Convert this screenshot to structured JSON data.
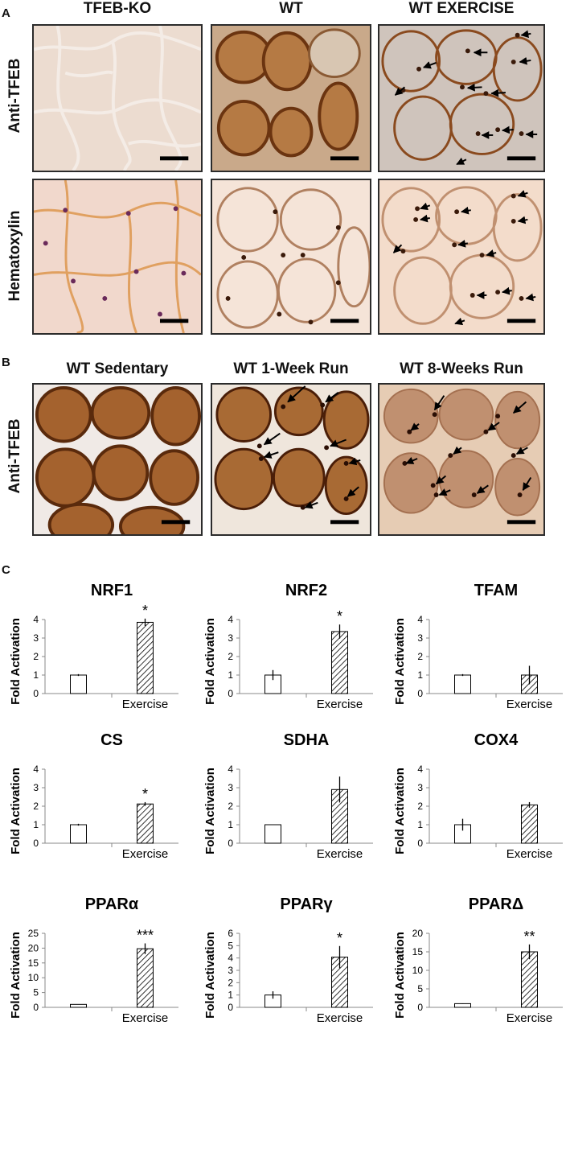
{
  "panelA": {
    "letter": "A",
    "columns": [
      "TFEB-KO",
      "WT",
      "WT EXERCISE"
    ],
    "rows": [
      "Anti-TFEB",
      "Hematoxylin"
    ]
  },
  "panelB": {
    "letter": "B",
    "columns": [
      "WT Sedentary",
      "WT 1-Week Run",
      "WT 8-Weeks Run"
    ],
    "rows": [
      "Anti-TFEB"
    ]
  },
  "panelC": {
    "letter": "C"
  },
  "colors": {
    "bar_edge": "#000000",
    "stain_brown": "#8a4a1e",
    "stain_purple": "#6a2a5a"
  },
  "chart_data": [
    {
      "type": "bar",
      "title": "NRF1",
      "categories": [
        "",
        "Exercise"
      ],
      "values": [
        1.0,
        3.85
      ],
      "errors": [
        0.05,
        0.2
      ],
      "annotations": [
        "",
        "*"
      ],
      "ylabel": "Fold Activation",
      "ylim": [
        0,
        4
      ],
      "yticks": [
        "0",
        "1",
        "2",
        "3",
        "4"
      ]
    },
    {
      "type": "bar",
      "title": "NRF2",
      "categories": [
        "",
        "Exercise"
      ],
      "values": [
        1.0,
        3.35
      ],
      "errors": [
        0.27,
        0.38
      ],
      "annotations": [
        "",
        "*"
      ],
      "ylabel": "Fold Activation",
      "ylim": [
        0,
        4
      ],
      "yticks": [
        "0",
        "1",
        "2",
        "3",
        "4"
      ]
    },
    {
      "type": "bar",
      "title": "TFAM",
      "categories": [
        "",
        "Exercise"
      ],
      "values": [
        1.0,
        1.0
      ],
      "errors": [
        0.05,
        0.5
      ],
      "annotations": [
        "",
        ""
      ],
      "ylabel": "Fold Activation",
      "ylim": [
        0,
        4
      ],
      "yticks": [
        "0",
        "1",
        "2",
        "3",
        "4"
      ]
    },
    {
      "type": "bar",
      "title": "CS",
      "categories": [
        "",
        "Exercise"
      ],
      "values": [
        1.0,
        2.12
      ],
      "errors": [
        0.05,
        0.1
      ],
      "annotations": [
        "",
        "*"
      ],
      "ylabel": "Fold Activation",
      "ylim": [
        0,
        4
      ],
      "yticks": [
        "0",
        "1",
        "2",
        "3",
        "4"
      ]
    },
    {
      "type": "bar",
      "title": "SDHA",
      "categories": [
        "",
        "Exercise"
      ],
      "values": [
        1.0,
        2.9
      ],
      "errors": [
        0.02,
        0.7
      ],
      "annotations": [
        "",
        ""
      ],
      "ylabel": "Fold Activation",
      "ylim": [
        0,
        4
      ],
      "yticks": [
        "0",
        "1",
        "2",
        "3",
        "4"
      ]
    },
    {
      "type": "bar",
      "title": "COX4",
      "categories": [
        "",
        "Exercise"
      ],
      "values": [
        1.0,
        2.07
      ],
      "errors": [
        0.32,
        0.15
      ],
      "annotations": [
        "",
        ""
      ],
      "ylabel": "Fold Activation",
      "ylim": [
        0,
        4
      ],
      "yticks": [
        "0",
        "1",
        "2",
        "3",
        "4"
      ]
    },
    {
      "type": "bar",
      "title": "PPARα",
      "categories": [
        "",
        "Exercise"
      ],
      "values": [
        1.0,
        19.8
      ],
      "errors": [
        0.05,
        1.8
      ],
      "annotations": [
        "",
        "***"
      ],
      "ylabel": "Fold Activation",
      "ylim": [
        0,
        25
      ],
      "yticks": [
        "0",
        "5",
        "10",
        "15",
        "20",
        "25"
      ]
    },
    {
      "type": "bar",
      "title": "PPARγ",
      "categories": [
        "",
        "Exercise"
      ],
      "values": [
        1.0,
        4.07
      ],
      "errors": [
        0.3,
        0.9
      ],
      "annotations": [
        "",
        "*"
      ],
      "ylabel": "Fold Activation",
      "ylim": [
        0,
        6
      ],
      "yticks": [
        "0",
        "1",
        "2",
        "3",
        "4",
        "5",
        "6"
      ]
    },
    {
      "type": "bar",
      "title": "PPARΔ",
      "categories": [
        "",
        "Exercise"
      ],
      "values": [
        1.0,
        15.0
      ],
      "errors": [
        0.05,
        2.0
      ],
      "annotations": [
        "",
        "**"
      ],
      "ylabel": "Fold Activation",
      "ylim": [
        0,
        20
      ],
      "yticks": [
        "0",
        "5",
        "10",
        "15",
        "20"
      ]
    }
  ]
}
